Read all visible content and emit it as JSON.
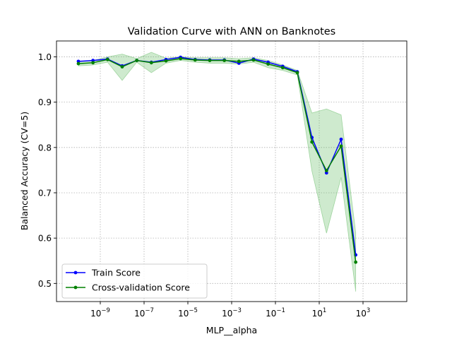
{
  "chart_data": {
    "type": "line",
    "title": "Validation Curve with ANN on Banknotes",
    "xlabel": "MLP__alpha",
    "ylabel": "Balanced Accuracy (CV=5)",
    "xscale": "log",
    "xlim": [
      1e-11,
      100000
    ],
    "ylim": [
      0.46,
      1.035
    ],
    "grid": true,
    "legend_position": "lower-left",
    "x_ticks": [
      {
        "value": 1e-09,
        "base": "10",
        "exp": "−9"
      },
      {
        "value": 1e-07,
        "base": "10",
        "exp": "−7"
      },
      {
        "value": 1e-05,
        "base": "10",
        "exp": "−5"
      },
      {
        "value": 0.001,
        "base": "10",
        "exp": "−3"
      },
      {
        "value": 0.1,
        "base": "10",
        "exp": "−1"
      },
      {
        "value": 10,
        "base": "10",
        "exp": "1"
      },
      {
        "value": 1000,
        "base": "10",
        "exp": "3"
      }
    ],
    "y_ticks": [
      {
        "value": 0.5,
        "label": "0.5"
      },
      {
        "value": 0.6,
        "label": "0.6"
      },
      {
        "value": 0.7,
        "label": "0.7"
      },
      {
        "value": 0.8,
        "label": "0.8"
      },
      {
        "value": 0.9,
        "label": "0.9"
      },
      {
        "value": 1.0,
        "label": "1.0"
      }
    ],
    "x": [
      1e-10,
      4.64e-10,
      2.15e-09,
      1e-08,
      4.64e-08,
      2.15e-07,
      1e-06,
      4.64e-06,
      2.15e-05,
      0.0001,
      0.000464,
      0.00215,
      0.01,
      0.0464,
      0.215,
      1,
      4.64,
      21.5,
      100,
      464,
      2150,
      10000
    ],
    "series": [
      {
        "name": "Train Score",
        "color": "#0000ff",
        "values": [
          0.99,
          0.992,
          0.995,
          0.98,
          0.992,
          0.988,
          0.994,
          0.999,
          0.994,
          0.993,
          0.993,
          0.986,
          0.995,
          0.988,
          0.979,
          0.967,
          0.822,
          0.744,
          0.818,
          0.563,
          null,
          null
        ]
      },
      {
        "name": "Cross-validation Score",
        "color": "#008000",
        "band_color": "#5cb85c",
        "values": [
          0.985,
          0.987,
          0.994,
          0.978,
          0.992,
          0.987,
          0.991,
          0.996,
          0.993,
          0.992,
          0.992,
          0.99,
          0.993,
          0.984,
          0.976,
          0.965,
          0.812,
          0.749,
          0.803,
          0.547,
          null,
          null
        ],
        "band_upper": [
          0.99,
          0.992,
          1.0,
          1.006,
          0.996,
          1.01,
          0.997,
          1.0,
          0.998,
          0.998,
          0.998,
          0.996,
          0.998,
          0.992,
          0.982,
          0.97,
          0.876,
          0.885,
          0.872,
          0.612,
          null,
          null
        ],
        "band_lower": [
          0.98,
          0.982,
          0.988,
          0.948,
          0.988,
          0.965,
          0.986,
          0.992,
          0.988,
          0.986,
          0.986,
          0.984,
          0.988,
          0.976,
          0.97,
          0.96,
          0.748,
          0.611,
          0.734,
          0.482,
          null,
          null
        ]
      }
    ]
  }
}
